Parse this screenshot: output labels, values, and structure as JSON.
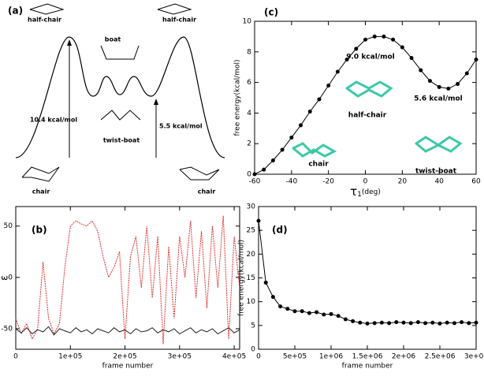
{
  "diagram": {
    "panel": "(a)",
    "labels": [
      "half-chair",
      "half-chair",
      "boat",
      "10.4 kcal/mol",
      "5.5 kcal/mol",
      "twist-boat",
      "chair",
      "chair"
    ]
  },
  "chart_data": [
    {
      "type": "line",
      "panel": "(c)",
      "x_label": "τ",
      "x_label_sub": "1",
      "x_label_unit": "(deg)",
      "y_label": "free energy(kcal/mol)",
      "xlim": [
        -60,
        60
      ],
      "ylim": [
        0,
        10
      ],
      "xticks": [
        -60,
        -40,
        -20,
        0,
        20,
        40,
        60
      ],
      "yticks": [
        0,
        2,
        4,
        6,
        8,
        10
      ],
      "x": [
        -60,
        -55,
        -50,
        -45,
        -40,
        -35,
        -30,
        -25,
        -20,
        -15,
        -10,
        -5,
        0,
        5,
        10,
        15,
        20,
        25,
        30,
        35,
        40,
        45,
        50,
        55,
        60
      ],
      "series": [
        {
          "color": "#000000",
          "marker": true,
          "values": [
            0,
            0.3,
            0.9,
            1.6,
            2.4,
            3.2,
            4.1,
            4.9,
            5.8,
            6.7,
            7.5,
            8.2,
            8.8,
            9.0,
            9.0,
            8.8,
            8.3,
            7.6,
            6.8,
            6.1,
            5.7,
            5.6,
            5.9,
            6.6,
            7.5
          ]
        }
      ],
      "annotations": [
        "9.0 kcal/mol",
        "half-chair",
        "5.6 kcal/mol",
        "twist-boat",
        "chair"
      ]
    },
    {
      "type": "line",
      "panel": "(b)",
      "x_label": "frame number",
      "y_label": "ε",
      "xlim": [
        0,
        410000
      ],
      "ylim": [
        -70,
        69
      ],
      "xticks": [
        0,
        {
          "value": 100000,
          "label": "1e+05"
        },
        {
          "value": 200000,
          "label": "2e+05"
        },
        {
          "value": 300000,
          "label": "3e+05"
        },
        {
          "value": 400000,
          "label": "4e+05"
        }
      ],
      "yticks": [
        -50,
        0,
        50
      ],
      "x": [
        0,
        10000,
        20000,
        30000,
        40000,
        50000,
        60000,
        70000,
        80000,
        90000,
        100000,
        110000,
        120000,
        130000,
        140000,
        150000,
        160000,
        170000,
        180000,
        190000,
        200000,
        210000,
        220000,
        230000,
        240000,
        250000,
        260000,
        270000,
        280000,
        290000,
        300000,
        310000,
        320000,
        330000,
        340000,
        350000,
        360000,
        370000,
        380000,
        390000,
        400000,
        410000
      ],
      "series": [
        {
          "color": "#e03030",
          "dashed": true,
          "values": [
            -40,
            -55,
            -45,
            -60,
            -50,
            15,
            -40,
            -55,
            -45,
            10,
            50,
            55,
            52,
            50,
            55,
            45,
            20,
            0,
            10,
            25,
            -60,
            20,
            40,
            -10,
            50,
            -20,
            40,
            -65,
            30,
            -40,
            40,
            0,
            55,
            -20,
            45,
            -30,
            50,
            -10,
            60,
            -60,
            40,
            -10
          ]
        },
        {
          "color": "#222222",
          "values": [
            -50,
            -54,
            -49,
            -55,
            -51,
            -53,
            -48,
            -56,
            -50,
            -52,
            -54,
            -49,
            -53,
            -51,
            -55,
            -50,
            -52,
            -54,
            -49,
            -53,
            -51,
            -55,
            -50,
            -53,
            -52,
            -49,
            -54,
            -51,
            -53,
            -50,
            -55,
            -52,
            -49,
            -54,
            -51,
            -53,
            -50,
            -55,
            -52,
            -49,
            -54,
            -51
          ]
        }
      ]
    },
    {
      "type": "line",
      "panel": "(d)",
      "x_label": "frame number",
      "y_label": "free energy(kcal/mol)",
      "xlim": [
        0,
        3000000
      ],
      "ylim": [
        0,
        30
      ],
      "xticks": [
        0,
        {
          "value": 500000,
          "label": "5e+05"
        },
        {
          "value": 1000000,
          "label": "1e+06"
        },
        {
          "value": 1500000,
          "label": "1.5e+06"
        },
        {
          "value": 2000000,
          "label": "2e+06"
        },
        {
          "value": 2500000,
          "label": "2.5e+06"
        },
        {
          "value": 3000000,
          "label": "3e+06"
        }
      ],
      "yticks": [
        0,
        5,
        10,
        15,
        20,
        25,
        30
      ],
      "x": [
        0,
        100000,
        200000,
        300000,
        400000,
        500000,
        600000,
        700000,
        800000,
        900000,
        1000000,
        1100000,
        1200000,
        1300000,
        1400000,
        1500000,
        1600000,
        1700000,
        1800000,
        1900000,
        2000000,
        2100000,
        2200000,
        2300000,
        2400000,
        2500000,
        2600000,
        2700000,
        2800000,
        2900000,
        3000000
      ],
      "series": [
        {
          "color": "#000000",
          "marker": true,
          "values": [
            27,
            14,
            11,
            9,
            8.5,
            8,
            8,
            7.6,
            7.8,
            7.3,
            7.4,
            7.0,
            6.3,
            5.9,
            5.6,
            5.4,
            5.5,
            5.6,
            5.5,
            5.7,
            5.6,
            5.5,
            5.7,
            5.5,
            5.6,
            5.4,
            5.6,
            5.5,
            5.7,
            5.5,
            5.6
          ]
        }
      ]
    }
  ]
}
